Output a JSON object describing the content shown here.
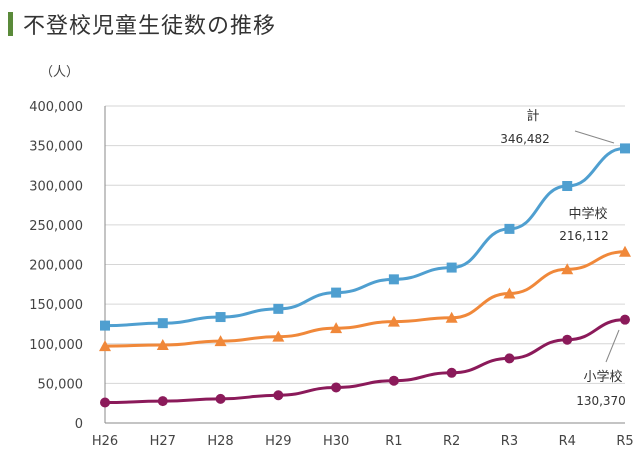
{
  "header": {
    "title": "不登校児童生徒数の推移",
    "accent_color": "#5a8a3a"
  },
  "chart_data": {
    "type": "line",
    "title": "不登校児童生徒数の推移",
    "ylabel": "（人）",
    "xlabel": "",
    "categories": [
      "H26",
      "H27",
      "H28",
      "H29",
      "H30",
      "R1",
      "R2",
      "R3",
      "R4",
      "R5"
    ],
    "y_ticks": [
      "0",
      "50,000",
      "100,000",
      "150,000",
      "200,000",
      "250,000",
      "300,000",
      "350,000",
      "400,000"
    ],
    "ylim": [
      0,
      400000
    ],
    "grid": "horizontal",
    "series": [
      {
        "name": "計",
        "color": "#4f9fd0",
        "marker": "square",
        "values": [
          122897,
          125991,
          133683,
          144031,
          164528,
          181272,
          196127,
          244940,
          299048,
          346482
        ]
      },
      {
        "name": "中学校",
        "color": "#f0883a",
        "marker": "triangle",
        "values": [
          97033,
          98408,
          103235,
          108999,
          119687,
          127922,
          132777,
          163442,
          193936,
          216112
        ]
      },
      {
        "name": "小学校",
        "color": "#8b1a5a",
        "marker": "circle",
        "values": [
          25864,
          27583,
          30448,
          35032,
          44841,
          53350,
          63350,
          81498,
          105112,
          130370
        ]
      }
    ],
    "annotations": [
      {
        "series": "計",
        "label": "計",
        "value_text": "346,482"
      },
      {
        "series": "中学校",
        "label": "中学校",
        "value_text": "216,112"
      },
      {
        "series": "小学校",
        "label": "小学校",
        "value_text": "130,370"
      }
    ]
  }
}
